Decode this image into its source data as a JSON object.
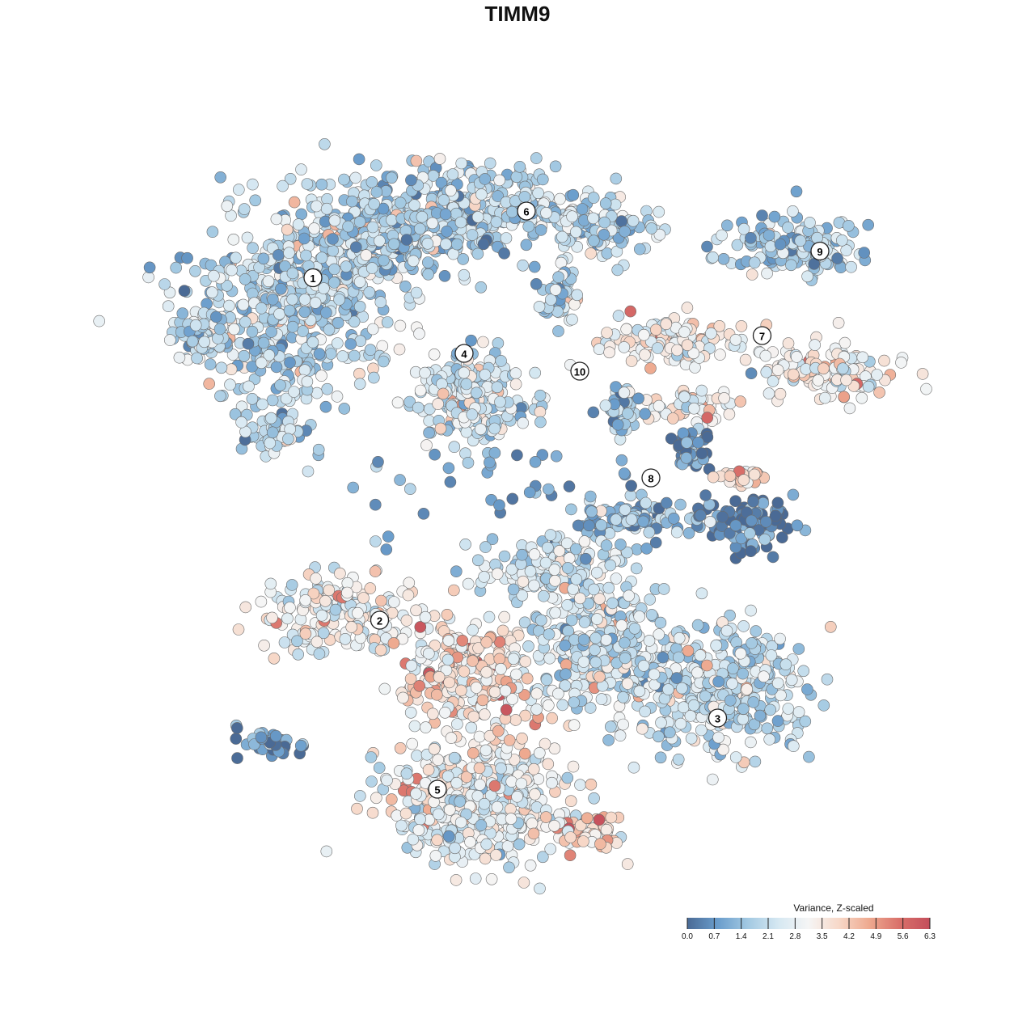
{
  "chart_data": {
    "type": "scatter",
    "title": "TIMM9",
    "xlabel": "",
    "ylabel": "",
    "grid": false,
    "legend": {
      "title": "Variance, Z-scaled",
      "placement": "bottom-right",
      "ticks": [
        "0.0",
        "0.7",
        "1.4",
        "2.1",
        "2.8",
        "3.5",
        "4.2",
        "4.9",
        "5.6",
        "6.3"
      ],
      "min": 0.0,
      "max": 6.3,
      "colors": [
        "#4a6a95",
        "#6a9dcc",
        "#a3c9e2",
        "#d6e8f2",
        "#f5f5f5",
        "#f7d8c8",
        "#eea98f",
        "#d9706a",
        "#c44e5b"
      ]
    },
    "clusters": [
      {
        "label": "1",
        "x": -4.6,
        "y": 4.3,
        "mean": 2.0
      },
      {
        "label": "2",
        "x": -3.1,
        "y": -3.4,
        "mean": 2.9
      },
      {
        "label": "3",
        "x": 4.5,
        "y": -5.6,
        "mean": 2.2
      },
      {
        "label": "4",
        "x": -1.2,
        "y": 2.6,
        "mean": 2.4
      },
      {
        "label": "5",
        "x": -1.8,
        "y": -7.2,
        "mean": 2.9
      },
      {
        "label": "6",
        "x": 0.2,
        "y": 5.8,
        "mean": 1.8
      },
      {
        "label": "7",
        "x": 5.5,
        "y": 3.0,
        "mean": 3.2
      },
      {
        "label": "8",
        "x": 3.0,
        "y": -0.2,
        "mean": 1.1
      },
      {
        "label": "9",
        "x": 6.8,
        "y": 4.9,
        "mean": 1.6
      },
      {
        "label": "10",
        "x": 1.4,
        "y": 2.2,
        "mean": 1.5
      }
    ]
  }
}
